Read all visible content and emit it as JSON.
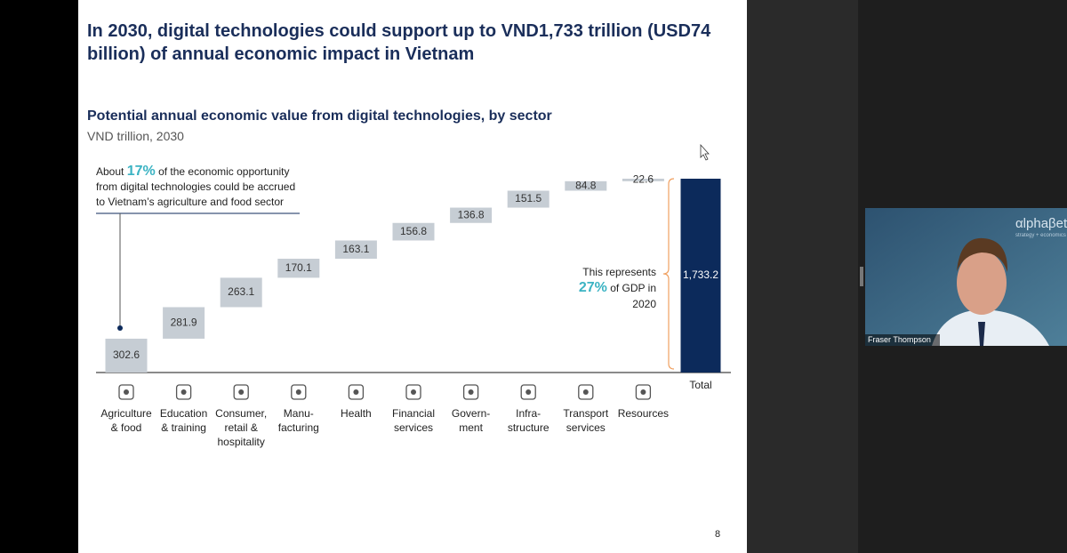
{
  "slide": {
    "title": "In 2030, digital technologies could support up to VND1,733 trillion (USD74 billion) of annual economic impact in Vietnam",
    "page_number": "8"
  },
  "chart_data": {
    "type": "waterfall",
    "title": "Potential annual economic value from digital technologies, by sector",
    "subtitle": "VND trillion, 2030",
    "categories": [
      "Agriculture\n& food",
      "Education\n& training",
      "Consumer,\nretail &\nhospitality",
      "Manu-\nfacturing",
      "Health",
      "Financial\nservices",
      "Govern-\nment",
      "Infra-\nstructure",
      "Transport\nservices",
      "Resources"
    ],
    "values": [
      302.6,
      281.9,
      263.1,
      170.1,
      163.1,
      156.8,
      136.8,
      151.5,
      84.8,
      22.6
    ],
    "color": "#c6cdd4",
    "total": {
      "label": "Total",
      "value": 1733.2,
      "value_label": "1,733.2",
      "color": "#0c2a5b"
    },
    "annotations": [
      {
        "before": "About",
        "highlight": "17%",
        "after": "of the economic opportunity from digital technologies could be accrued to Vietnam’s agriculture and food sector"
      },
      {
        "before": "This represents",
        "highlight": "27%",
        "after": "of GDP in 2020"
      }
    ]
  },
  "video": {
    "participant": "Fraser Thompson",
    "logo": "αlphaβeta",
    "logo_tagline": "strategy + economics"
  }
}
